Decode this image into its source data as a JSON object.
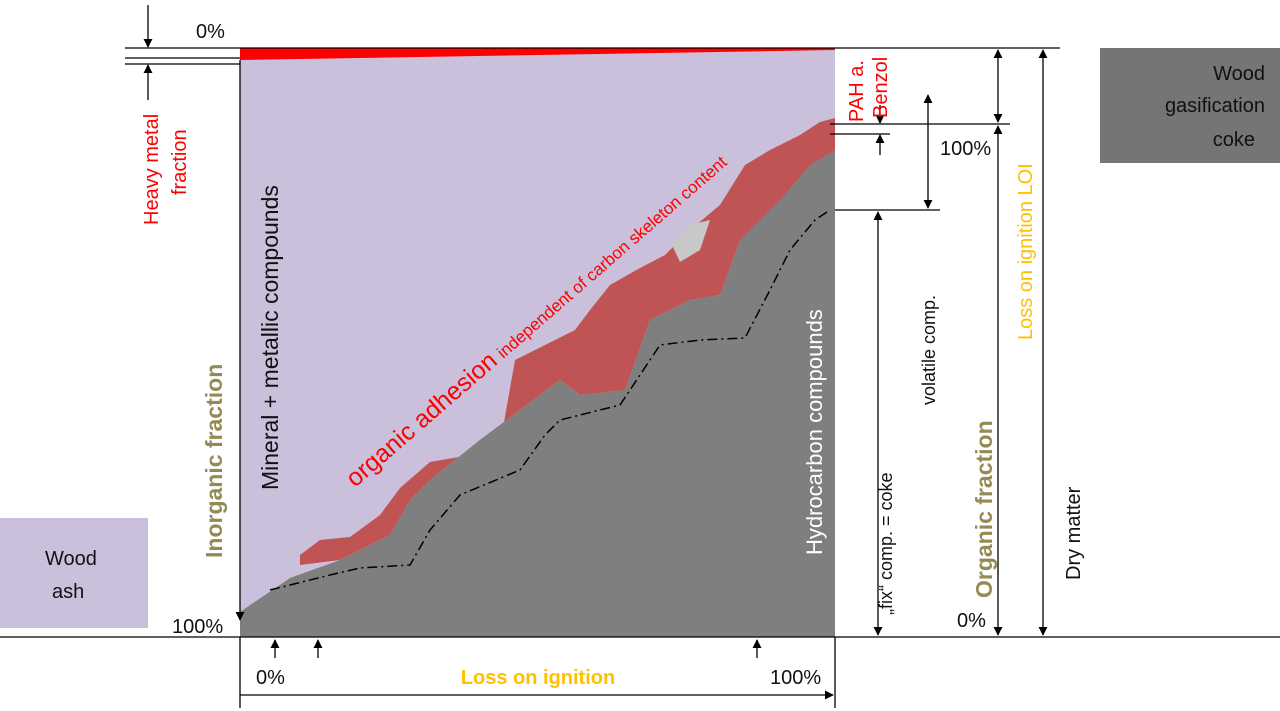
{
  "labels": {
    "heavy_metal_pct": "0%",
    "heavy_metal_fraction": [
      "Heavy metal",
      "fraction"
    ],
    "mineral": "Mineral + metallic compounds",
    "inorganic": "Inorganic fraction",
    "wood_ash": [
      "Wood",
      "ash"
    ],
    "inorganic_100": "100%",
    "organic_adhesion": "organic adhesion",
    "adhesion_note": "independent of carbon skeleton content",
    "pah": [
      "PAH  a.",
      "Benzol"
    ],
    "hydrocarbon": "Hydrocarbon compounds",
    "right_100": "100%",
    "fix_comp": "„fix“ comp. =  coke",
    "volatile": "volatile comp.",
    "organic_fraction": "Organic fraction",
    "right_0": "0%",
    "loi": "Loss on ignition LOI",
    "dry_matter": "Dry matter",
    "coke_box": [
      "Wood",
      "gasification",
      "coke"
    ],
    "bottom_0": "0%",
    "bottom_loi": "Loss on ignition",
    "bottom_100": "100%"
  }
}
